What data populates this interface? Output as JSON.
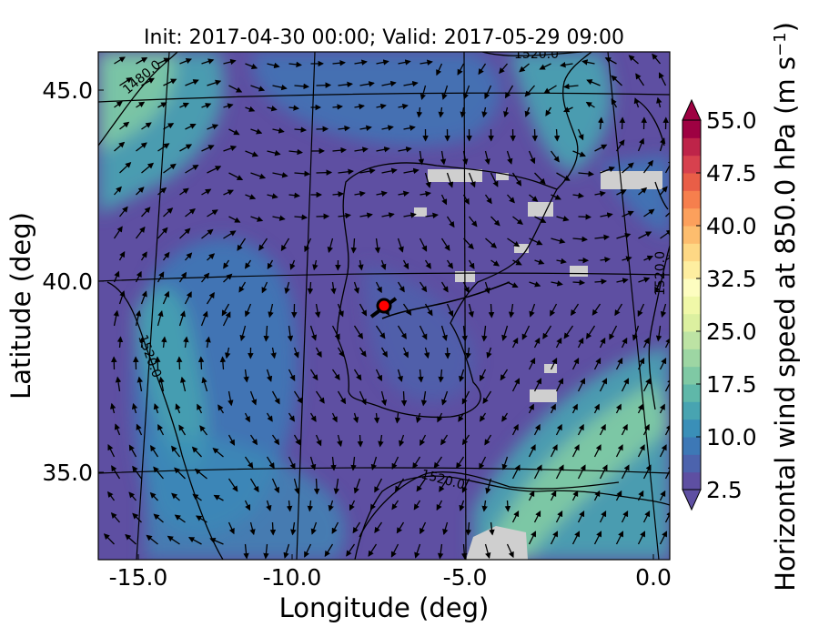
{
  "chart_data": {
    "type": "heatmap",
    "title": "Init: 2017-04-30 00:00; Valid: 2017-05-29 09:00",
    "xlabel": "Longitude (deg)",
    "ylabel": "Latitude (deg)",
    "xlim": [
      -15.9,
      0.3
    ],
    "ylim": [
      32.8,
      46.2
    ],
    "x_ticks": [
      -15.0,
      -10.0,
      -5.0,
      0.0
    ],
    "x_tick_labels": [
      "-15.0",
      "-10.0",
      "-5.0",
      "0.0"
    ],
    "y_ticks": [
      35.0,
      40.0,
      45.0
    ],
    "y_tick_labels": [
      "35.0",
      "40.0",
      "45.0"
    ],
    "colorbar": {
      "label": "Horizontal wind speed at 850.0 hPa (m s",
      "label_superscript": "−1",
      "label_close": ")",
      "ticks": [
        2.5,
        10.0,
        17.5,
        25.0,
        32.5,
        40.0,
        47.5,
        55.0
      ],
      "tick_labels": [
        "2.5",
        "10.0",
        "17.5",
        "25.0",
        "32.5",
        "40.0",
        "47.5",
        "55.0"
      ],
      "min": 2.5,
      "max": 55.0,
      "colors": [
        "#5e4fa2",
        "#4c63ad",
        "#3d78b6",
        "#3a8fb8",
        "#48a4b1",
        "#5fb8a9",
        "#7fc9a4",
        "#9dd6a3",
        "#bde3a4",
        "#dcf0a0",
        "#f0f8a8",
        "#fdfdc0",
        "#feeea0",
        "#fed885",
        "#fdbd6e",
        "#fca05c",
        "#f67f4d",
        "#e95e47",
        "#d7414e",
        "#be2449",
        "#9e0142"
      ]
    },
    "contour_labels": [
      "1480.0",
      "1520.0",
      "1520.0",
      "1520.0",
      "1520.0"
    ],
    "marker": {
      "lon": -7.7,
      "lat": 39.4,
      "color": "#ff0000"
    }
  }
}
